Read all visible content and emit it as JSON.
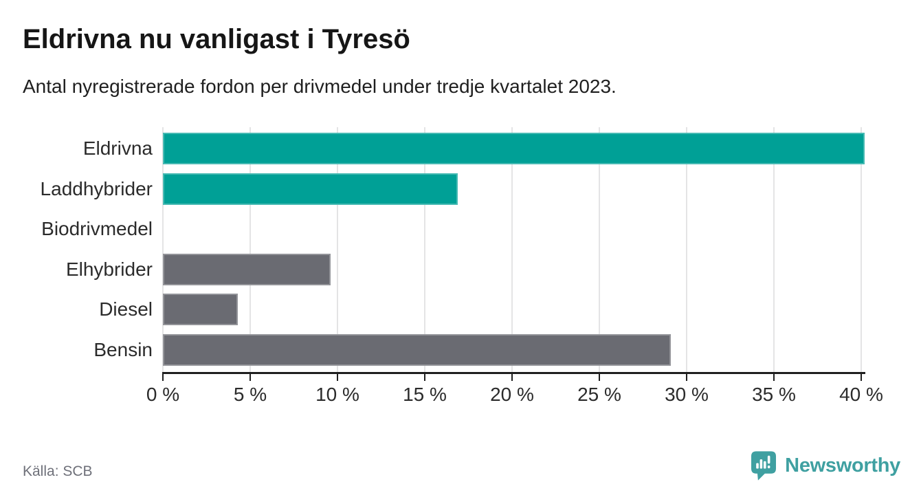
{
  "header": {
    "title": "Eldrivna nu vanligast i Tyresö",
    "subtitle": "Antal nyregistrerade fordon per drivmedel under tredje kvartalet 2023."
  },
  "chart_data": {
    "type": "bar",
    "orientation": "horizontal",
    "title": "Eldrivna nu vanligast i Tyresö",
    "subtitle": "Antal nyregistrerade fordon per drivmedel under tredje kvartalet 2023.",
    "categories": [
      "Eldrivna",
      "Laddhybrider",
      "Biodrivmedel",
      "Elhybrider",
      "Diesel",
      "Bensin"
    ],
    "values": [
      40.2,
      16.9,
      0,
      9.6,
      4.3,
      29.1
    ],
    "unit": "%",
    "bar_colors": [
      "#00a096",
      "#00a096",
      "#6a6b72",
      "#6a6b72",
      "#6a6b72",
      "#6a6b72"
    ],
    "xlim": [
      0,
      40.4
    ],
    "x_ticks": [
      0,
      5,
      10,
      15,
      20,
      25,
      30,
      35,
      40
    ],
    "x_tick_labels": [
      "0 %",
      "5 %",
      "10 %",
      "15 %",
      "20 %",
      "25 %",
      "30 %",
      "35 %",
      "40 %"
    ],
    "grid": "vertical-only",
    "legend": "none",
    "source": "Källa: SCB"
  },
  "colors": {
    "highlight_teal": "#00a096",
    "neutral_gray": "#6a6b72",
    "gridline": "#e4e4e5",
    "axis": "#1f1f1f",
    "brand_teal": "#3fa0a1"
  },
  "footer": {
    "source": "Källa: SCB",
    "brand": "Newsworthy"
  }
}
